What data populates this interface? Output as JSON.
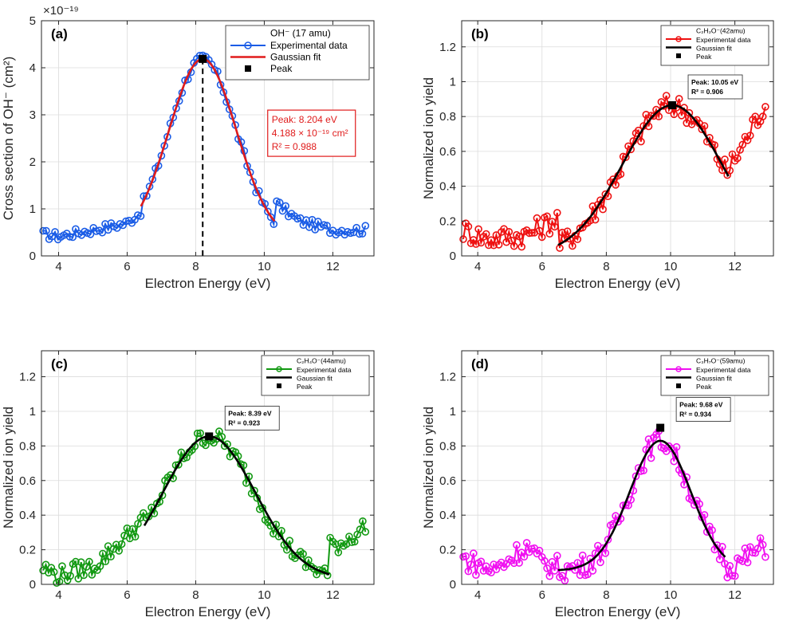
{
  "figure": {
    "panels": [
      {
        "id": "a",
        "panel_label": "(a)",
        "xlabel": "Electron Energy (eV)",
        "ylabel": "Cross section of OH⁻ (cm²)",
        "exponent_label": "×10⁻¹⁹",
        "xlim": [
          3.5,
          13.2
        ],
        "ylim": [
          0,
          5
        ],
        "xticks": [
          4,
          6,
          8,
          10,
          12
        ],
        "yticks": [
          0,
          1,
          2,
          3,
          4,
          5
        ],
        "color": "#1a5ce6",
        "fit_color": "#e01b1b",
        "legend": {
          "title": "OH⁻ (17 amu)",
          "entries": [
            "Experimental data",
            "Gaussian fit",
            "Peak"
          ]
        },
        "annotation": {
          "lines": [
            "Peak: 8.204 eV",
            "4.188 × 10⁻¹⁹ cm²",
            "R² = 0.988"
          ],
          "color": "#e01b1b"
        },
        "peak": {
          "x": 8.204,
          "y": 4.188
        },
        "show_peak_line": true,
        "fit": {
          "amp": 4.188,
          "mu": 8.204,
          "sigma": 0.98,
          "offset": 0.35,
          "x_from": 6.4,
          "x_to": 10.3
        },
        "noise": 0.02,
        "baseline": {
          "x": [
            3.5,
            4.0,
            5.0,
            6.0,
            6.5
          ],
          "y": [
            0.46,
            0.42,
            0.55,
            0.7,
            1.0
          ]
        },
        "tail": {
          "x": [
            10.3,
            11.0,
            12.0,
            12.9
          ],
          "y": [
            1.15,
            0.75,
            0.55,
            0.55
          ]
        },
        "n_points": 110
      },
      {
        "id": "b",
        "panel_label": "(b)",
        "xlabel": "Electron Energy (eV)",
        "ylabel": "Normalized ion yield",
        "exponent_label": "",
        "xlim": [
          3.5,
          13.2
        ],
        "ylim": [
          0,
          1.35
        ],
        "xticks": [
          4,
          6,
          8,
          10,
          12
        ],
        "yticks": [
          0,
          0.2,
          0.4,
          0.6,
          0.8,
          1,
          1.2
        ],
        "color": "#ee1111",
        "fit_color": "#000000",
        "legend": {
          "title": "C₂H₂O⁻(42amu)",
          "entries": [
            "Experimental data",
            "Gaussian fit",
            "Peak"
          ]
        },
        "annotation": {
          "lines": [
            "Peak: 10.05 eV",
            "R² = 0.906"
          ],
          "color": "#000000"
        },
        "peak": {
          "x": 10.05,
          "y": 0.865
        },
        "show_peak_line": false,
        "fit": {
          "amp": 0.865,
          "mu": 10.05,
          "sigma": 1.55,
          "offset": 0,
          "x_from": 6.5,
          "x_to": 11.8
        },
        "noise": 0.05,
        "baseline": {
          "x": [
            3.5,
            4.3,
            5.5,
            6.5
          ],
          "y": [
            0.15,
            0.1,
            0.12,
            0.22
          ]
        },
        "tail": {
          "x": [
            11.8,
            12.2,
            12.9
          ],
          "y": [
            0.5,
            0.62,
            0.86
          ]
        },
        "n_points": 120
      },
      {
        "id": "c",
        "panel_label": "(c)",
        "xlabel": "Electron Energy (eV)",
        "ylabel": "Normalized ion yield",
        "exponent_label": "",
        "xlim": [
          3.5,
          13.2
        ],
        "ylim": [
          0,
          1.35
        ],
        "xticks": [
          4,
          6,
          8,
          10,
          12
        ],
        "yticks": [
          0,
          0.2,
          0.4,
          0.6,
          0.8,
          1,
          1.2
        ],
        "color": "#129912",
        "fit_color": "#000000",
        "legend": {
          "title": "C₂H₄O⁻(44amu)",
          "entries": [
            "Experimental data",
            "Gaussian fit",
            "Peak"
          ]
        },
        "annotation": {
          "lines": [
            "Peak: 8.39 eV",
            "R² = 0.923"
          ],
          "color": "#000000"
        },
        "peak": {
          "x": 8.39,
          "y": 0.855
        },
        "show_peak_line": false,
        "fit": {
          "amp": 0.855,
          "mu": 8.39,
          "sigma": 1.35,
          "offset": 0.03,
          "x_from": 6.5,
          "x_to": 11.9
        },
        "noise": 0.04,
        "baseline": {
          "x": [
            3.5,
            4.0,
            4.5,
            5.0,
            6.0,
            6.5
          ],
          "y": [
            0.1,
            0.05,
            0.08,
            0.1,
            0.28,
            0.38
          ]
        },
        "tail": {
          "x": [
            11.9,
            12.3,
            12.9
          ],
          "y": [
            0.22,
            0.24,
            0.33
          ]
        },
        "n_points": 120
      },
      {
        "id": "d",
        "panel_label": "(d)",
        "xlabel": "Electron Energy (eV)",
        "ylabel": "Normalized ion yield",
        "exponent_label": "",
        "xlim": [
          3.5,
          13.2
        ],
        "ylim": [
          0,
          1.35
        ],
        "xticks": [
          4,
          6,
          8,
          10,
          12
        ],
        "yticks": [
          0,
          0.2,
          0.4,
          0.6,
          0.8,
          1,
          1.2
        ],
        "color": "#f010f0",
        "fit_color": "#000000",
        "legend": {
          "title": "C₃H₇O⁻(59amu)",
          "entries": [
            "Experimental data",
            "Gaussian fit",
            "Peak"
          ]
        },
        "annotation": {
          "lines": [
            "Peak: 9.68 eV",
            "R² = 0.934"
          ],
          "color": "#000000"
        },
        "peak": {
          "x": 9.68,
          "y": 0.905
        },
        "show_peak_line": false,
        "fit": {
          "amp": 0.83,
          "mu": 9.68,
          "sigma": 0.95,
          "offset": 0.08,
          "x_from": 6.5,
          "x_to": 11.7
        },
        "noise": 0.05,
        "baseline": {
          "x": [
            3.5,
            4.5,
            5.5,
            6.0,
            6.5
          ],
          "y": [
            0.15,
            0.08,
            0.22,
            0.12,
            0.1
          ]
        },
        "tail": {
          "x": [
            11.7,
            12.1,
            12.9
          ],
          "y": [
            0.1,
            0.12,
            0.22
          ]
        },
        "n_points": 120
      }
    ]
  }
}
